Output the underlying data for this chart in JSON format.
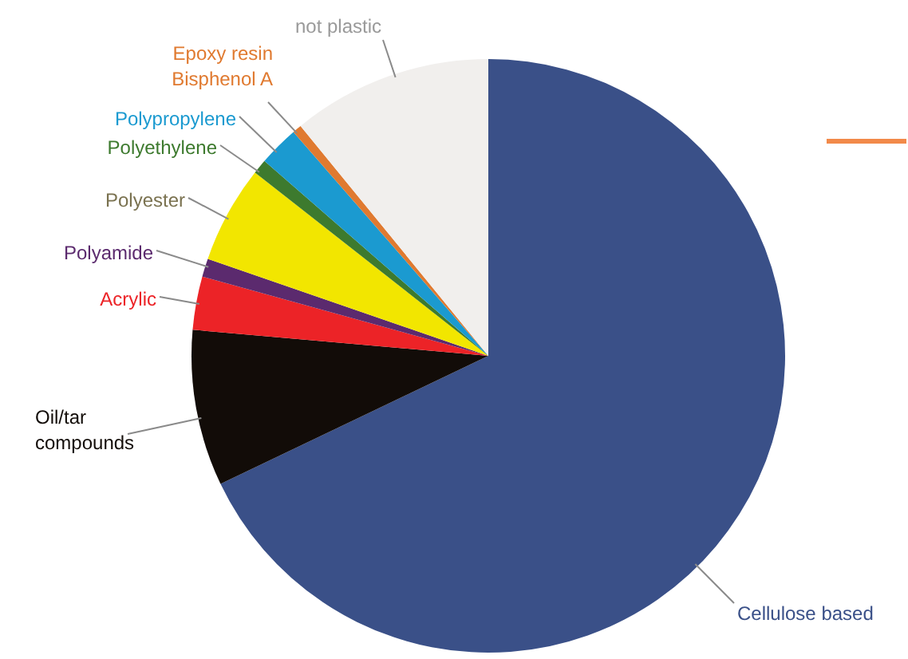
{
  "chart_data": {
    "type": "pie",
    "categories": [
      "Cellulose based",
      "Oil/tar compounds",
      "Acrylic",
      "Polyamide",
      "Polyester",
      "Polyethylene",
      "Polypropylene",
      "Epoxy resin Bisphenol A",
      "not plastic"
    ],
    "values": [
      67.9,
      8.5,
      2.9,
      1.0,
      5.3,
      0.8,
      2.2,
      0.5,
      10.9
    ],
    "colors": [
      "#3a5088",
      "#120c08",
      "#ec2327",
      "#5b2a6e",
      "#f2e600",
      "#3d7a2e",
      "#1b9ad0",
      "#e07a30",
      "#f1efed"
    ]
  }
}
